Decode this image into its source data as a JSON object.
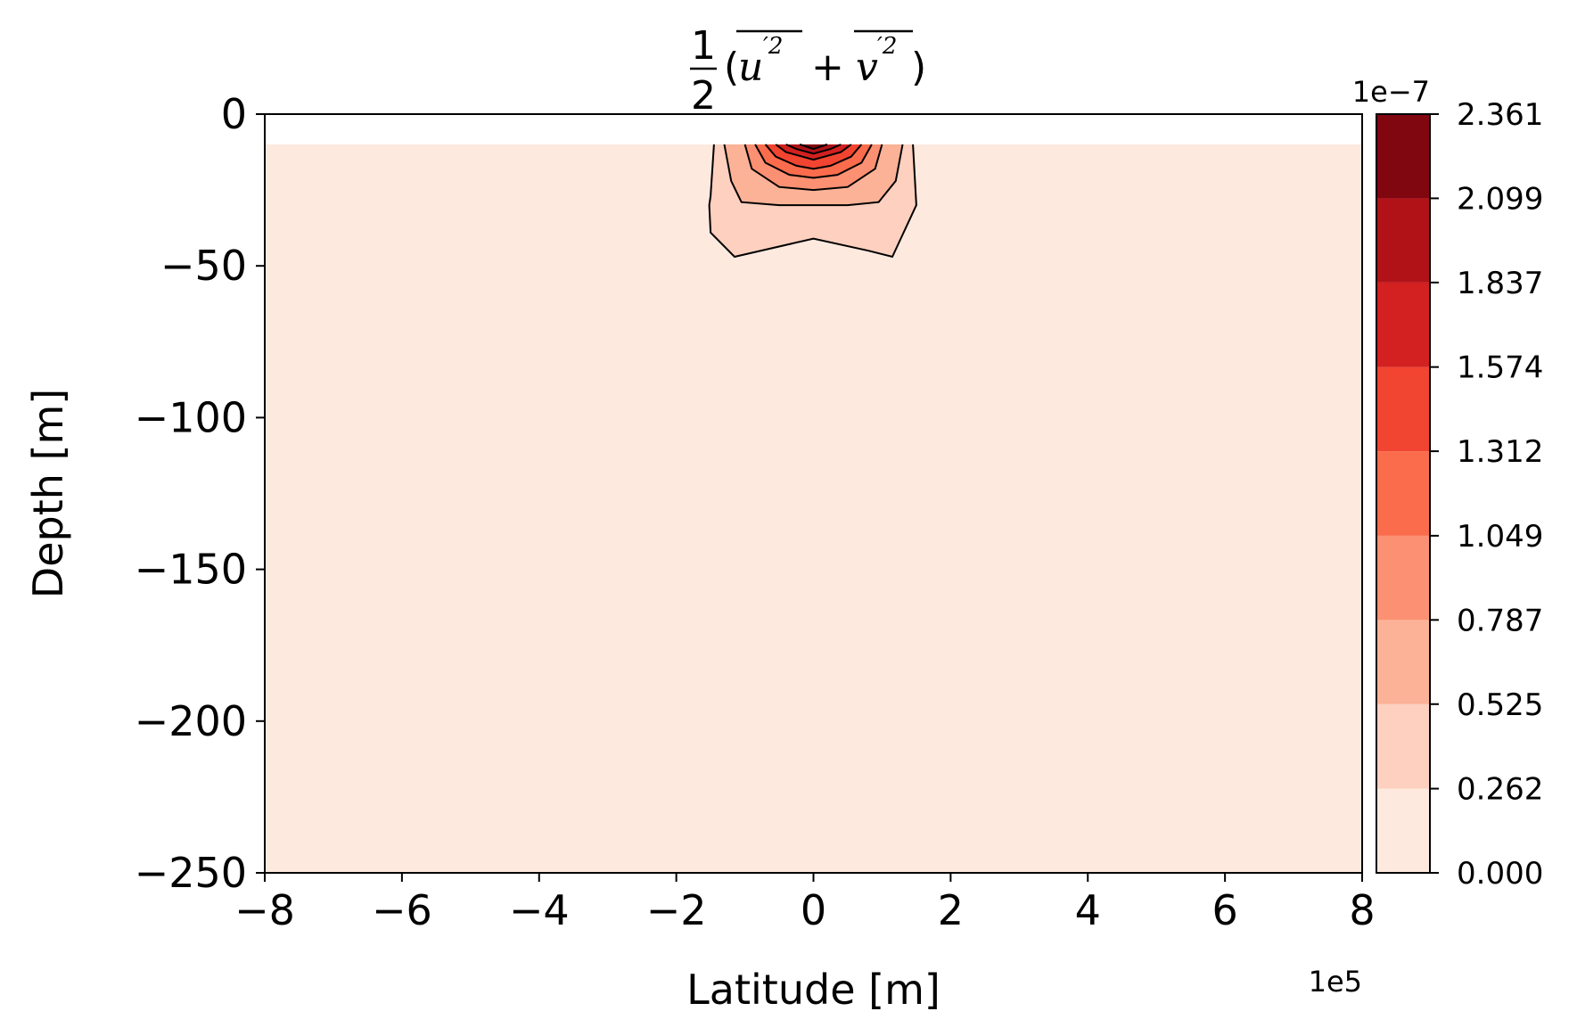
{
  "chart_data": {
    "type": "contourf",
    "title": "½(u'² + v'²)",
    "title_parts": {
      "numerator": "1",
      "denominator": "2",
      "open": "(",
      "term1": "u",
      "term1_sup": "′2",
      "plus": "+",
      "term2": "v",
      "term2_sup": "′2",
      "close": ")"
    },
    "xlabel": "Latitude [m]",
    "ylabel": "Depth [m]",
    "x_offset_label": "1e5",
    "xlim": [
      -8,
      8
    ],
    "ylim": [
      -250,
      0
    ],
    "x_ticks": [
      -8,
      -6,
      -4,
      -2,
      0,
      2,
      4,
      6,
      8
    ],
    "x_tick_labels": [
      "−8",
      "−6",
      "−4",
      "−2",
      "0",
      "2",
      "4",
      "6",
      "8"
    ],
    "y_ticks": [
      0,
      -50,
      -100,
      -150,
      -200,
      -250
    ],
    "y_tick_labels": [
      "0",
      "−50",
      "−100",
      "−150",
      "−200",
      "−250"
    ],
    "data_top_depth": -10,
    "colormap": "Reds",
    "colorbar": {
      "offset_label": "1e−7",
      "levels": [
        0.0,
        0.262,
        0.525,
        0.787,
        1.049,
        1.312,
        1.574,
        1.837,
        2.099,
        2.361
      ],
      "tick_labels": [
        "0.000",
        "0.262",
        "0.525",
        "0.787",
        "1.049",
        "1.312",
        "1.574",
        "1.837",
        "2.099",
        "2.361"
      ],
      "colors": [
        "#fee9df",
        "#fdd0bf",
        "#fcb297",
        "#fc9072",
        "#fb6c4d",
        "#f14431",
        "#d32020",
        "#b11218",
        "#800610"
      ]
    },
    "contours": [
      {
        "level": 0.262,
        "points": [
          [
            -1.45,
            -10
          ],
          [
            -1.5,
            -27
          ],
          [
            -1.52,
            -30
          ],
          [
            -1.5,
            -39
          ],
          [
            -1.15,
            -47
          ],
          [
            0.0,
            -41
          ],
          [
            0.8,
            -45
          ],
          [
            1.15,
            -47
          ],
          [
            1.5,
            -30
          ],
          [
            1.45,
            -10
          ]
        ]
      },
      {
        "level": 0.525,
        "points": [
          [
            -1.3,
            -10
          ],
          [
            -1.2,
            -22
          ],
          [
            -1.05,
            -29
          ],
          [
            -0.5,
            -30
          ],
          [
            0.0,
            -30
          ],
          [
            0.5,
            -30
          ],
          [
            0.95,
            -29
          ],
          [
            1.2,
            -22
          ],
          [
            1.3,
            -10
          ]
        ]
      },
      {
        "level": 0.787,
        "points": [
          [
            -1.0,
            -10
          ],
          [
            -0.9,
            -18
          ],
          [
            -0.5,
            -24
          ],
          [
            0.0,
            -25
          ],
          [
            0.5,
            -24
          ],
          [
            0.9,
            -18
          ],
          [
            1.0,
            -10
          ]
        ]
      },
      {
        "level": 1.049,
        "points": [
          [
            -0.85,
            -10
          ],
          [
            -0.7,
            -16
          ],
          [
            -0.35,
            -20
          ],
          [
            0.0,
            -21
          ],
          [
            0.35,
            -20
          ],
          [
            0.7,
            -16
          ],
          [
            0.85,
            -10
          ]
        ]
      },
      {
        "level": 1.312,
        "points": [
          [
            -0.7,
            -10
          ],
          [
            -0.55,
            -14
          ],
          [
            -0.25,
            -17
          ],
          [
            0.0,
            -18
          ],
          [
            0.25,
            -17
          ],
          [
            0.55,
            -14
          ],
          [
            0.7,
            -10
          ]
        ]
      },
      {
        "level": 1.574,
        "points": [
          [
            -0.55,
            -10
          ],
          [
            -0.4,
            -12.5
          ],
          [
            0.0,
            -15
          ],
          [
            0.4,
            -12.5
          ],
          [
            0.55,
            -10
          ]
        ]
      },
      {
        "level": 1.837,
        "points": [
          [
            -0.4,
            -10
          ],
          [
            -0.25,
            -11.5
          ],
          [
            0.0,
            -13
          ],
          [
            0.25,
            -11.5
          ],
          [
            0.4,
            -10
          ]
        ]
      },
      {
        "level": 2.099,
        "points": [
          [
            -0.2,
            -10
          ],
          [
            0.0,
            -11.5
          ],
          [
            0.2,
            -10
          ]
        ]
      }
    ]
  }
}
